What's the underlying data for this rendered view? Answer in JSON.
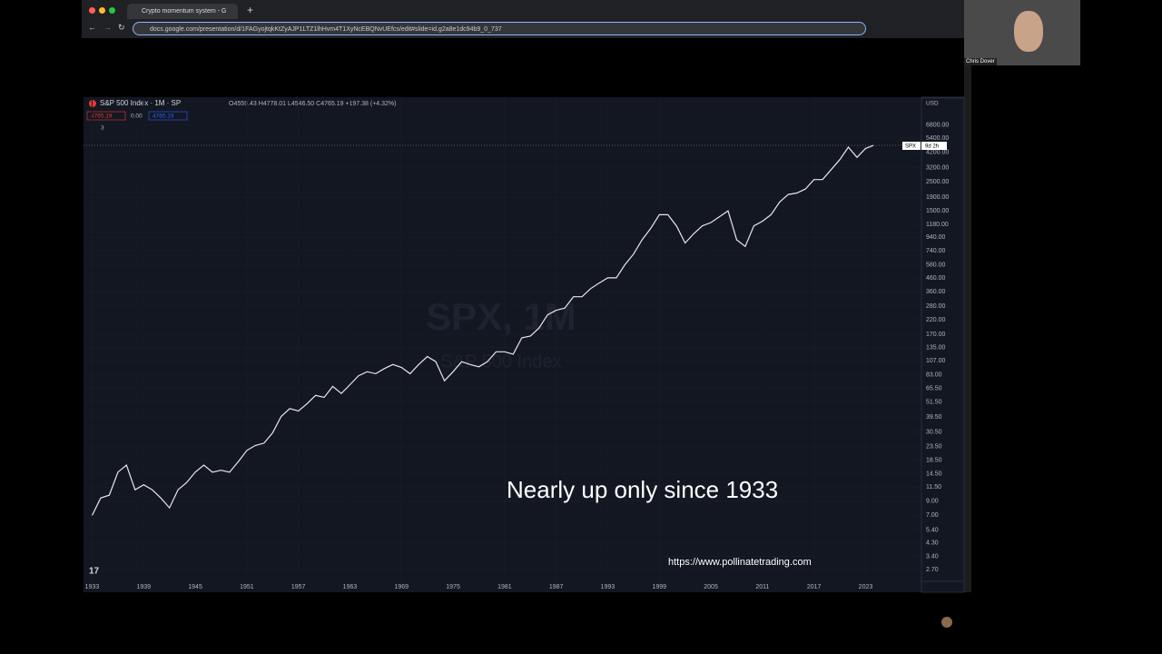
{
  "browser": {
    "tab_title": "Crypto momentum system - G",
    "url": "docs.google.com/presentation/d/1FAGyojtqkKtZyAJP1LTZ1lhHvm4T1XyNcEBQNvUEfcs/edit#slide=id.g2a8e1dc94b9_0_737"
  },
  "presenter": {
    "name": "Chris Dover"
  },
  "chart_header": {
    "symbol": "S&P 500 Index · 1M · SP",
    "ohlc": "O4559.43 H4778.01 L4546.50 C4765.19 +197.38 (+4.32%)",
    "bid": "4765.19",
    "spread": "0.00",
    "ask": "4765.19",
    "indicators": "3",
    "currency": "USD",
    "price_tag": "SPX",
    "countdown": "9d 2h",
    "watermark_symbol": "SPX, 1M",
    "watermark_name": "S&P 500 Index",
    "logo": "17"
  },
  "chart_data": {
    "type": "line",
    "log_scale": true,
    "grid": true,
    "color": "#e8e8e8",
    "x": [
      1933,
      1934,
      1935,
      1936,
      1937,
      1938,
      1939,
      1940,
      1941,
      1942,
      1943,
      1944,
      1945,
      1946,
      1947,
      1948,
      1949,
      1950,
      1951,
      1952,
      1953,
      1954,
      1955,
      1956,
      1957,
      1958,
      1959,
      1960,
      1961,
      1962,
      1963,
      1964,
      1965,
      1966,
      1967,
      1968,
      1969,
      1970,
      1971,
      1972,
      1973,
      1974,
      1975,
      1976,
      1977,
      1978,
      1979,
      1980,
      1981,
      1982,
      1983,
      1984,
      1985,
      1986,
      1987,
      1988,
      1989,
      1990,
      1991,
      1992,
      1993,
      1994,
      1995,
      1996,
      1997,
      1998,
      1999,
      2000,
      2001,
      2002,
      2003,
      2004,
      2005,
      2006,
      2007,
      2008,
      2009,
      2010,
      2011,
      2012,
      2013,
      2014,
      2015,
      2016,
      2017,
      2018,
      2019,
      2020,
      2021,
      2022,
      2023,
      2024
    ],
    "values": [
      7,
      9.5,
      10,
      15,
      17,
      11,
      12,
      11,
      9.5,
      8,
      11,
      12.5,
      15,
      17,
      15,
      15.5,
      15,
      18,
      22,
      24,
      25,
      30,
      40,
      46,
      44,
      50,
      58,
      56,
      68,
      60,
      70,
      82,
      88,
      85,
      93,
      100,
      95,
      85,
      100,
      115,
      105,
      75,
      88,
      105,
      100,
      96,
      105,
      125,
      125,
      120,
      160,
      165,
      190,
      240,
      260,
      270,
      330,
      330,
      380,
      420,
      460,
      460,
      580,
      700,
      900,
      1100,
      1400,
      1400,
      1150,
      850,
      1000,
      1150,
      1220,
      1350,
      1500,
      900,
      800,
      1150,
      1250,
      1400,
      1750,
      2000,
      2050,
      2200,
      2600,
      2600,
      3100,
      3700,
      4600,
      3850,
      4500,
      4765.19
    ],
    "xlim": [
      1932,
      2029.5
    ],
    "ylim": [
      2.19,
      9310
    ],
    "xticks": [
      1933,
      1939,
      1945,
      1951,
      1957,
      1963,
      1969,
      1975,
      1981,
      1987,
      1993,
      1999,
      2005,
      2011,
      2017,
      2023
    ],
    "yticks": [
      {
        "value": 6800,
        "label": "6800.00"
      },
      {
        "value": 5400,
        "label": "5400.00"
      },
      {
        "value": 4200,
        "label": "4200.00"
      },
      {
        "value": 3200,
        "label": "3200.00"
      },
      {
        "value": 2500,
        "label": "2500.00"
      },
      {
        "value": 1900,
        "label": "1900.00"
      },
      {
        "value": 1500,
        "label": "1500.00"
      },
      {
        "value": 1180,
        "label": "1180.00"
      },
      {
        "value": 940,
        "label": "940.00"
      },
      {
        "value": 740,
        "label": "740.00"
      },
      {
        "value": 580,
        "label": "580.00"
      },
      {
        "value": 460,
        "label": "460.00"
      },
      {
        "value": 360,
        "label": "360.00"
      },
      {
        "value": 280,
        "label": "280.00"
      },
      {
        "value": 220,
        "label": "220.00"
      },
      {
        "value": 170,
        "label": "170.00"
      },
      {
        "value": 135,
        "label": "135.00"
      },
      {
        "value": 107,
        "label": "107.00"
      },
      {
        "value": 83,
        "label": "83.00"
      },
      {
        "value": 65.5,
        "label": "65.50"
      },
      {
        "value": 51.5,
        "label": "51.50"
      },
      {
        "value": 39.5,
        "label": "39.50"
      },
      {
        "value": 30.5,
        "label": "30.50"
      },
      {
        "value": 23.5,
        "label": "23.50"
      },
      {
        "value": 18.5,
        "label": "18.50"
      },
      {
        "value": 14.5,
        "label": "14.50"
      },
      {
        "value": 11.5,
        "label": "11.50"
      },
      {
        "value": 9,
        "label": "9.00"
      },
      {
        "value": 7,
        "label": "7.00"
      },
      {
        "value": 5.4,
        "label": "5.40"
      },
      {
        "value": 4.3,
        "label": "4.30"
      },
      {
        "value": 3.4,
        "label": "3.40"
      },
      {
        "value": 2.7,
        "label": "2.70"
      }
    ],
    "caption": "Nearly up only since 1933",
    "source": "https://www.pollinatetrading.com"
  }
}
